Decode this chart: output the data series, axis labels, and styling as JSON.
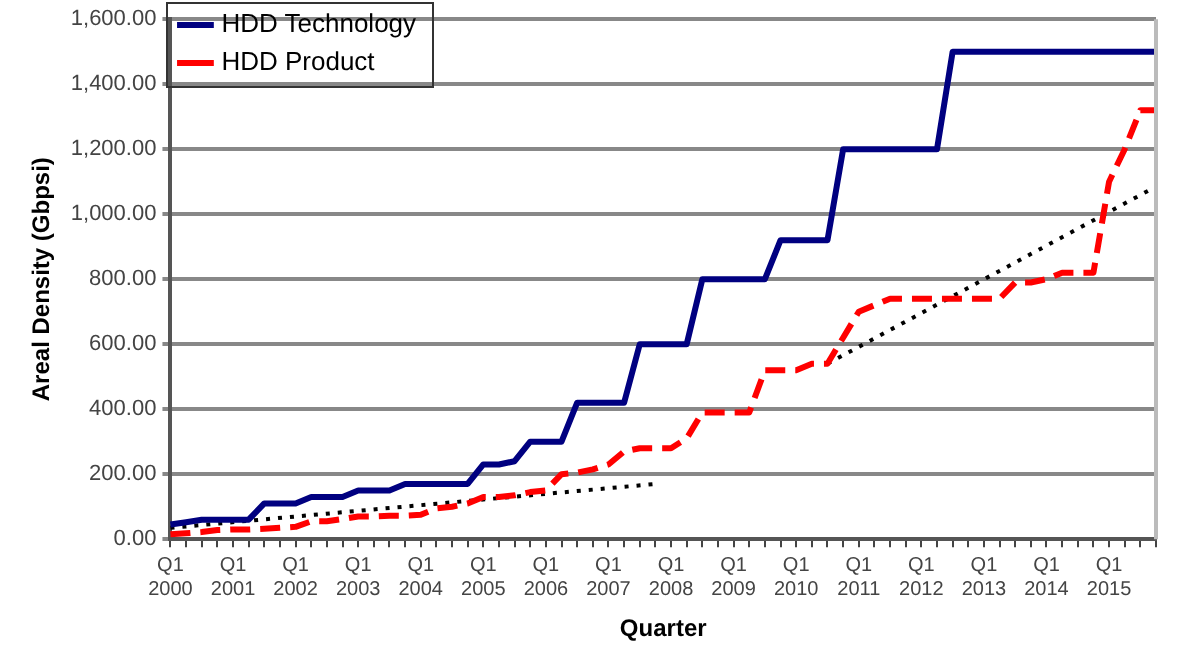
{
  "chart_data": {
    "type": "line",
    "xlabel": "Quarter",
    "ylabel": "Areal Density (Gbpsi)",
    "categories": [
      "Q1 2000",
      null,
      null,
      null,
      "Q1 2001",
      null,
      null,
      null,
      "Q1 2002",
      null,
      null,
      null,
      "Q1 2003",
      null,
      null,
      null,
      "Q1 2004",
      null,
      null,
      null,
      "Q1 2005",
      null,
      null,
      null,
      "Q1 2006",
      null,
      null,
      null,
      "Q1 2007",
      null,
      null,
      null,
      "Q1 2008",
      null,
      null,
      null,
      "Q1 2009",
      null,
      null,
      null,
      "Q1 2010",
      null,
      null,
      null,
      "Q1 2011",
      null,
      null,
      null,
      "Q1 2012",
      null,
      null,
      null,
      "Q1 2013",
      null,
      null,
      null,
      "Q1 2014",
      null,
      null,
      null,
      "Q1 2015",
      null,
      null,
      null
    ],
    "series": [
      {
        "name": "HDD Technology",
        "color": "#000080",
        "line_style": "solid",
        "values": [
          45,
          52,
          60,
          60,
          60,
          60,
          110,
          110,
          110,
          130,
          130,
          130,
          150,
          150,
          150,
          170,
          170,
          170,
          170,
          170,
          230,
          230,
          240,
          300,
          300,
          300,
          420,
          420,
          420,
          420,
          600,
          600,
          600,
          600,
          800,
          800,
          800,
          800,
          800,
          920,
          920,
          920,
          920,
          1200,
          1200,
          1200,
          1200,
          1200,
          1200,
          1200,
          1500,
          1500,
          1500,
          1500,
          1500,
          1500,
          1500,
          1500,
          1500,
          1500,
          1500,
          1500,
          1500,
          1500
        ]
      },
      {
        "name": "HDD Product",
        "color": "#ff0000",
        "line_style": "dashed",
        "values": [
          15,
          18,
          22,
          28,
          30,
          30,
          32,
          35,
          38,
          55,
          55,
          62,
          70,
          70,
          72,
          72,
          75,
          95,
          100,
          110,
          130,
          130,
          135,
          145,
          150,
          200,
          205,
          215,
          230,
          270,
          280,
          280,
          280,
          310,
          390,
          390,
          390,
          390,
          520,
          520,
          520,
          540,
          540,
          620,
          700,
          720,
          740,
          740,
          740,
          740,
          740,
          740,
          740,
          740,
          790,
          790,
          800,
          820,
          820,
          820,
          1100,
          1200,
          1320,
          1320
        ]
      },
      {
        "type": "line",
        "color": "#000000",
        "line_style": "dotted",
        "values": [
          35,
          null,
          null,
          null,
          null,
          null,
          null,
          null,
          null,
          null,
          null,
          null,
          null,
          null,
          null,
          null,
          null,
          null,
          null,
          null,
          null,
          null,
          null,
          null,
          null,
          null,
          null,
          null,
          null,
          null,
          null,
          170,
          null,
          null,
          null,
          null,
          null,
          null,
          null,
          null,
          null,
          null,
          null,
          null,
          null,
          null,
          null,
          null,
          null,
          null,
          null,
          null,
          null,
          null,
          null,
          null,
          null,
          null,
          null,
          null,
          null,
          null,
          null,
          null
        ]
      },
      {
        "type": "line",
        "color": "#000000",
        "line_style": "dotted",
        "values": [
          null,
          null,
          null,
          null,
          null,
          null,
          null,
          null,
          null,
          null,
          null,
          null,
          null,
          null,
          null,
          null,
          null,
          null,
          null,
          null,
          null,
          null,
          null,
          null,
          null,
          null,
          null,
          null,
          null,
          null,
          null,
          null,
          null,
          null,
          null,
          null,
          null,
          null,
          null,
          null,
          null,
          null,
          540,
          null,
          null,
          null,
          null,
          null,
          null,
          null,
          null,
          null,
          null,
          null,
          null,
          null,
          null,
          null,
          null,
          null,
          null,
          null,
          null,
          1085
        ]
      }
    ],
    "ylim": [
      0,
      1600
    ],
    "yticks": [
      {
        "value": 0,
        "label": "0.00"
      },
      {
        "value": 200,
        "label": "200.00"
      },
      {
        "value": 400,
        "label": "400.00"
      },
      {
        "value": 600,
        "label": "600.00"
      },
      {
        "value": 800,
        "label": "800.00"
      },
      {
        "value": 1000,
        "label": "1,000.00"
      },
      {
        "value": 1200,
        "label": "1,200.00"
      },
      {
        "value": 1400,
        "label": "1,400.00"
      },
      {
        "value": 1600,
        "label": "1,600.00"
      }
    ],
    "grid": "y",
    "legend": "top left",
    "marker": "none"
  }
}
